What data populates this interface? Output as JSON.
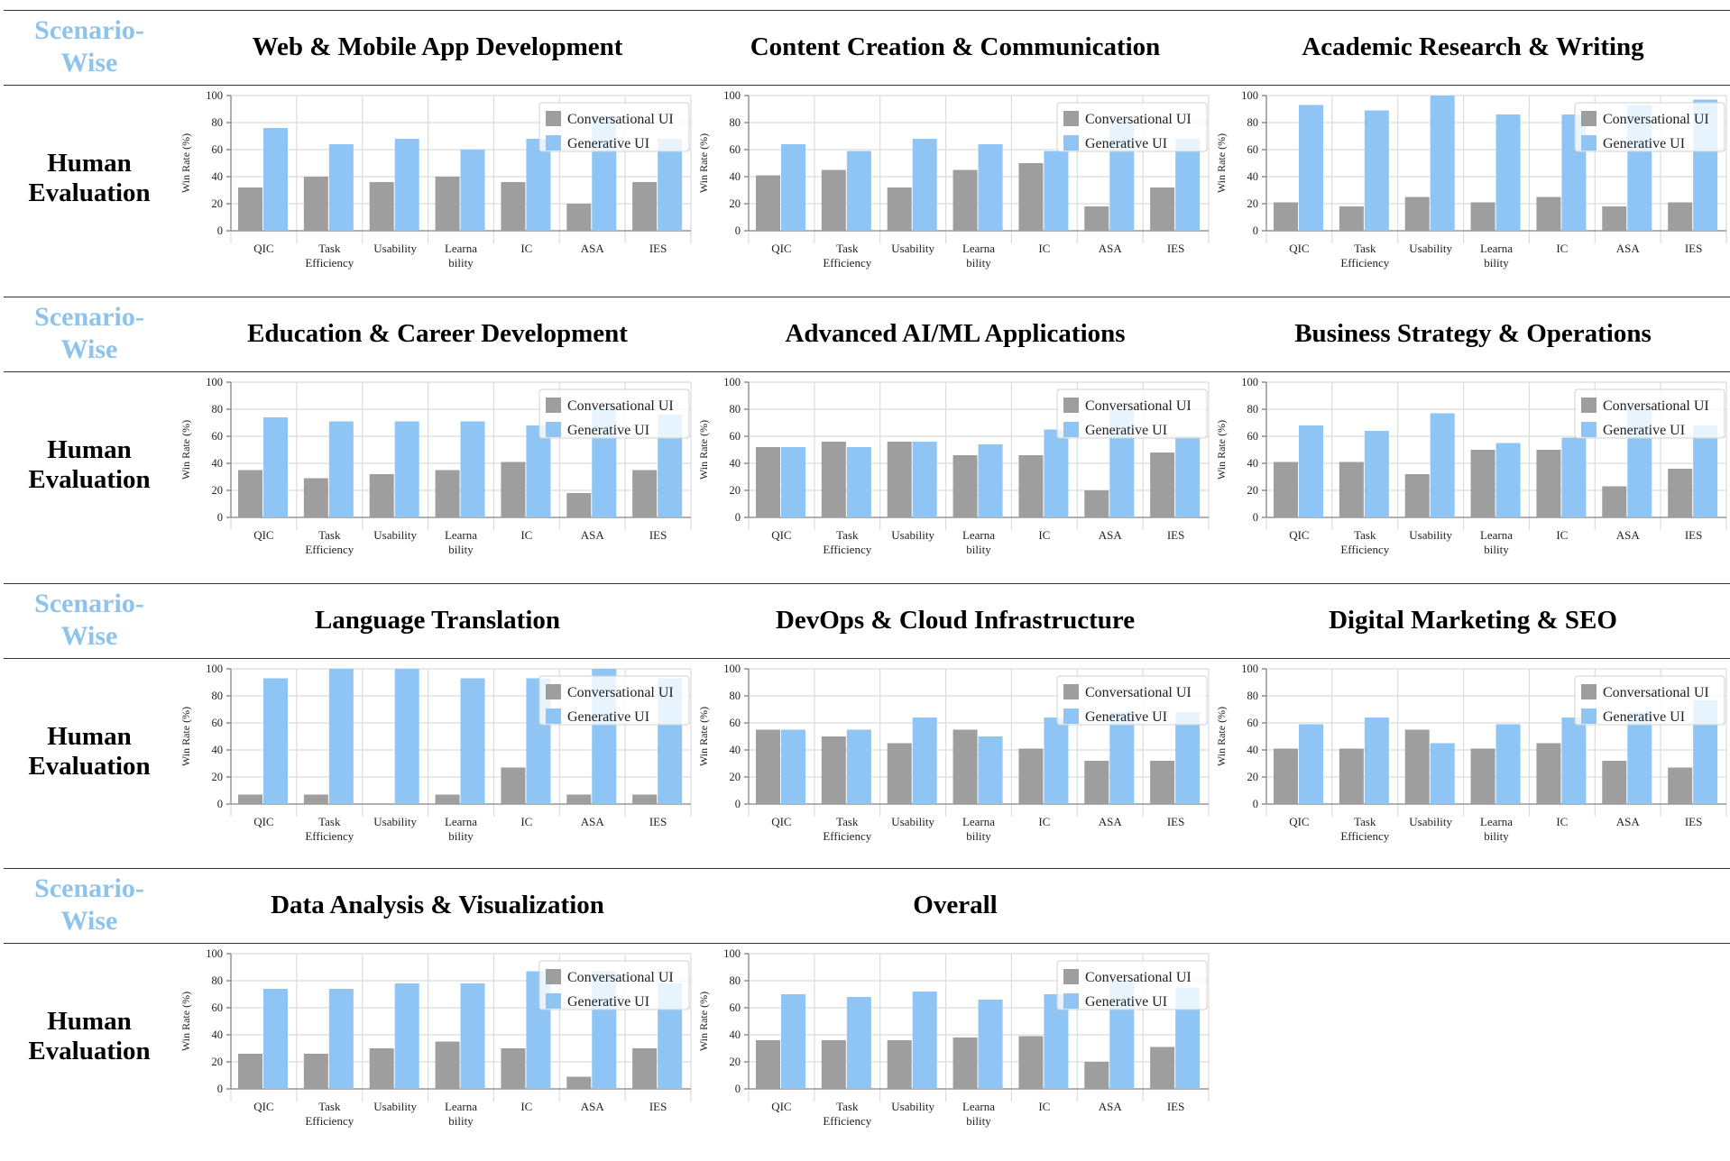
{
  "row_labels": {
    "scenario_line1": "Scenario-",
    "scenario_line2": "Wise",
    "human_line1": "Human",
    "human_line2": "Evaluation"
  },
  "colors": {
    "conversational": "#9e9e9e",
    "generative": "#8ec5f5",
    "scenario_label": "#8ec3ec"
  },
  "chart_data": [
    {
      "type": "bar",
      "title": "Web & Mobile App Development",
      "ylabel": "Win Rate (%)",
      "ylim": [
        0,
        100
      ],
      "yticks": [
        "0",
        "20",
        "40",
        "60",
        "80",
        "100"
      ],
      "categories": [
        "QIC",
        "Task Efficiency",
        "Usability",
        "Learnability",
        "IC",
        "ASA",
        "IES"
      ],
      "series": [
        {
          "name": "Conversational UI",
          "values": [
            32,
            40,
            36,
            40,
            36,
            20,
            36
          ]
        },
        {
          "name": "Generative UI",
          "values": [
            76,
            64,
            68,
            60,
            68,
            84,
            68
          ]
        }
      ]
    },
    {
      "type": "bar",
      "title": "Content Creation & Communication",
      "ylabel": "Win Rate (%)",
      "ylim": [
        0,
        100
      ],
      "yticks": [
        "0",
        "20",
        "40",
        "60",
        "80",
        "100"
      ],
      "categories": [
        "QIC",
        "Task Efficiency",
        "Usability",
        "Learnability",
        "IC",
        "ASA",
        "IES"
      ],
      "series": [
        {
          "name": "Conversational UI",
          "values": [
            41,
            45,
            32,
            45,
            50,
            18,
            32
          ]
        },
        {
          "name": "Generative UI",
          "values": [
            64,
            59,
            68,
            64,
            59,
            82,
            68
          ]
        }
      ]
    },
    {
      "type": "bar",
      "title": "Academic Research & Writing",
      "ylabel": "Win Rate (%)",
      "ylim": [
        0,
        100
      ],
      "yticks": [
        "0",
        "20",
        "40",
        "60",
        "80",
        "100"
      ],
      "categories": [
        "QIC",
        "Task Efficiency",
        "Usability",
        "Learnability",
        "IC",
        "ASA",
        "IES"
      ],
      "series": [
        {
          "name": "Conversational UI",
          "values": [
            21,
            18,
            25,
            21,
            25,
            18,
            21
          ]
        },
        {
          "name": "Generative UI",
          "values": [
            93,
            89,
            100,
            86,
            86,
            93,
            97
          ]
        }
      ]
    },
    {
      "type": "bar",
      "title": "Education & Career Development",
      "ylabel": "Win Rate (%)",
      "ylim": [
        0,
        100
      ],
      "yticks": [
        "0",
        "20",
        "40",
        "60",
        "80",
        "100"
      ],
      "categories": [
        "QIC",
        "Task Efficiency",
        "Usability",
        "Learnability",
        "IC",
        "ASA",
        "IES"
      ],
      "series": [
        {
          "name": "Conversational UI",
          "values": [
            35,
            29,
            32,
            35,
            41,
            18,
            35
          ]
        },
        {
          "name": "Generative UI",
          "values": [
            74,
            71,
            71,
            71,
            68,
            82,
            76
          ]
        }
      ]
    },
    {
      "type": "bar",
      "title": "Advanced AI/ML Applications",
      "ylabel": "Win Rate (%)",
      "ylim": [
        0,
        100
      ],
      "yticks": [
        "0",
        "20",
        "40",
        "60",
        "80",
        "100"
      ],
      "categories": [
        "QIC",
        "Task Efficiency",
        "Usability",
        "Learnability",
        "IC",
        "ASA",
        "IES"
      ],
      "series": [
        {
          "name": "Conversational UI",
          "values": [
            52,
            56,
            56,
            46,
            46,
            20,
            48
          ]
        },
        {
          "name": "Generative UI",
          "values": [
            52,
            52,
            56,
            54,
            65,
            80,
            60
          ]
        }
      ]
    },
    {
      "type": "bar",
      "title": "Business Strategy & Operations",
      "ylabel": "Win Rate (%)",
      "ylim": [
        0,
        100
      ],
      "yticks": [
        "0",
        "20",
        "40",
        "60",
        "80",
        "100"
      ],
      "categories": [
        "QIC",
        "Task Efficiency",
        "Usability",
        "Learnability",
        "IC",
        "ASA",
        "IES"
      ],
      "series": [
        {
          "name": "Conversational UI",
          "values": [
            41,
            41,
            32,
            50,
            50,
            23,
            36
          ]
        },
        {
          "name": "Generative UI",
          "values": [
            68,
            64,
            77,
            55,
            59,
            82,
            68
          ]
        }
      ]
    },
    {
      "type": "bar",
      "title": "Language Translation",
      "ylabel": "Win Rate (%)",
      "ylim": [
        0,
        100
      ],
      "yticks": [
        "0",
        "20",
        "40",
        "60",
        "80",
        "100"
      ],
      "categories": [
        "QIC",
        "Task Efficiency",
        "Usability",
        "Learnability",
        "IC",
        "ASA",
        "IES"
      ],
      "series": [
        {
          "name": "Conversational UI",
          "values": [
            7,
            7,
            0,
            7,
            27,
            7,
            7
          ]
        },
        {
          "name": "Generative UI",
          "values": [
            93,
            100,
            100,
            93,
            93,
            100,
            93
          ]
        }
      ]
    },
    {
      "type": "bar",
      "title": "DevOps & Cloud Infrastructure",
      "ylabel": "Win Rate (%)",
      "ylim": [
        0,
        100
      ],
      "yticks": [
        "0",
        "20",
        "40",
        "60",
        "80",
        "100"
      ],
      "categories": [
        "QIC",
        "Task Efficiency",
        "Usability",
        "Learnability",
        "IC",
        "ASA",
        "IES"
      ],
      "series": [
        {
          "name": "Conversational UI",
          "values": [
            55,
            50,
            45,
            55,
            41,
            32,
            32
          ]
        },
        {
          "name": "Generative UI",
          "values": [
            55,
            55,
            64,
            50,
            64,
            68,
            68
          ]
        }
      ]
    },
    {
      "type": "bar",
      "title": "Digital Marketing & SEO",
      "ylabel": "Win Rate (%)",
      "ylim": [
        0,
        100
      ],
      "yticks": [
        "0",
        "20",
        "40",
        "60",
        "80",
        "100"
      ],
      "categories": [
        "QIC",
        "Task Efficiency",
        "Usability",
        "Learnability",
        "IC",
        "ASA",
        "IES"
      ],
      "series": [
        {
          "name": "Conversational UI",
          "values": [
            41,
            41,
            55,
            41,
            45,
            32,
            27
          ]
        },
        {
          "name": "Generative UI",
          "values": [
            59,
            64,
            45,
            59,
            64,
            68,
            77
          ]
        }
      ]
    },
    {
      "type": "bar",
      "title": "Data Analysis & Visualization",
      "ylabel": "Win Rate (%)",
      "ylim": [
        0,
        100
      ],
      "yticks": [
        "0",
        "20",
        "40",
        "60",
        "80",
        "100"
      ],
      "categories": [
        "QIC",
        "Task Efficiency",
        "Usability",
        "Learnability",
        "IC",
        "ASA",
        "IES"
      ],
      "series": [
        {
          "name": "Conversational UI",
          "values": [
            26,
            26,
            30,
            35,
            30,
            9,
            30
          ]
        },
        {
          "name": "Generative UI",
          "values": [
            74,
            74,
            78,
            78,
            87,
            87,
            78
          ]
        }
      ]
    },
    {
      "type": "bar",
      "title": "Overall",
      "ylabel": "Win Rate (%)",
      "ylim": [
        0,
        100
      ],
      "yticks": [
        "0",
        "20",
        "40",
        "60",
        "80",
        "100"
      ],
      "categories": [
        "QIC",
        "Task Efficiency",
        "Usability",
        "Learnability",
        "IC",
        "ASA",
        "IES"
      ],
      "series": [
        {
          "name": "Conversational UI",
          "values": [
            36,
            36,
            36,
            38,
            39,
            20,
            31
          ]
        },
        {
          "name": "Generative UI",
          "values": [
            70,
            68,
            72,
            66,
            70,
            80,
            75
          ]
        }
      ]
    }
  ]
}
